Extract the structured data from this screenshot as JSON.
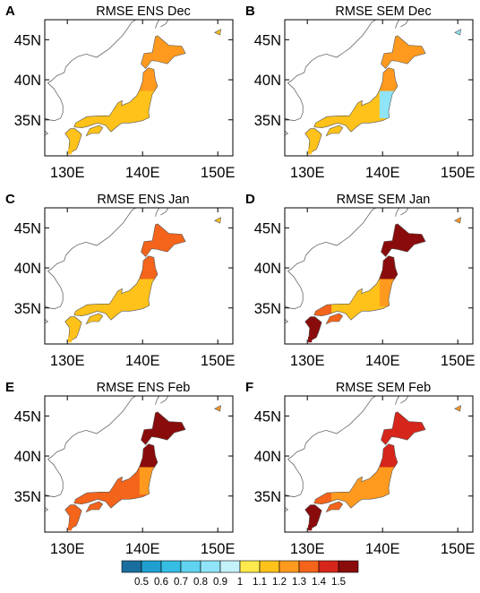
{
  "panels": [
    {
      "letter": "A",
      "title": "RMSE ENS Dec"
    },
    {
      "letter": "B",
      "title": "RMSE SEM Dec"
    },
    {
      "letter": "C",
      "title": "RMSE ENS Jan"
    },
    {
      "letter": "D",
      "title": "RMSE SEM Jan"
    },
    {
      "letter": "E",
      "title": "RMSE ENS Feb"
    },
    {
      "letter": "F",
      "title": "RMSE SEM Feb"
    }
  ],
  "axes": {
    "x_ticks": [
      "130E",
      "140E",
      "150E"
    ],
    "y_ticks": [
      "45N",
      "40N",
      "35N"
    ],
    "x_tick_values": [
      130,
      140,
      150
    ],
    "y_tick_values": [
      45,
      40,
      35
    ],
    "lon_range": [
      127,
      152
    ],
    "lat_range": [
      30.5,
      47.5
    ]
  },
  "colorbar": {
    "labels": [
      "0.5",
      "0.6",
      "0.7",
      "0.8",
      "0.9",
      "1",
      "1.1",
      "1.2",
      "1.3",
      "1.4",
      "1.5"
    ],
    "colors": [
      "#1a6e9e",
      "#1f9fd0",
      "#35bde3",
      "#5fd3f0",
      "#8fe4f7",
      "#c4f2fb",
      "#ffe94d",
      "#ffc21a",
      "#ff9a1f",
      "#f4641b",
      "#d6251a",
      "#8a0b0b"
    ]
  },
  "colors": {
    "land": "#ffffff",
    "coast": "#666666"
  },
  "region_colors": [
    {
      "north": "#ff9a1f",
      "east": "#ffc21a",
      "center": "#ffc21a",
      "west": "#ffc21a",
      "south": "#ffc21a"
    },
    {
      "north": "#ff9a1f",
      "east": "#8fe4f7",
      "center": "#ffc21a",
      "west": "#ffc21a",
      "south": "#ffc21a"
    },
    {
      "north": "#f4641b",
      "east": "#ffc21a",
      "center": "#ffc21a",
      "west": "#ffc21a",
      "south": "#ffc21a"
    },
    {
      "north": "#8a0b0b",
      "east": "#ff9a1f",
      "center": "#ffc21a",
      "west": "#f4641b",
      "south": "#8a0b0b"
    },
    {
      "north": "#8a0b0b",
      "east": "#ff9a1f",
      "center": "#f4641b",
      "west": "#f4641b",
      "south": "#f4641b"
    },
    {
      "north": "#d6251a",
      "east": "#ff9a1f",
      "center": "#ff9a1f",
      "west": "#f4641b",
      "south": "#8a0b0b"
    }
  ]
}
